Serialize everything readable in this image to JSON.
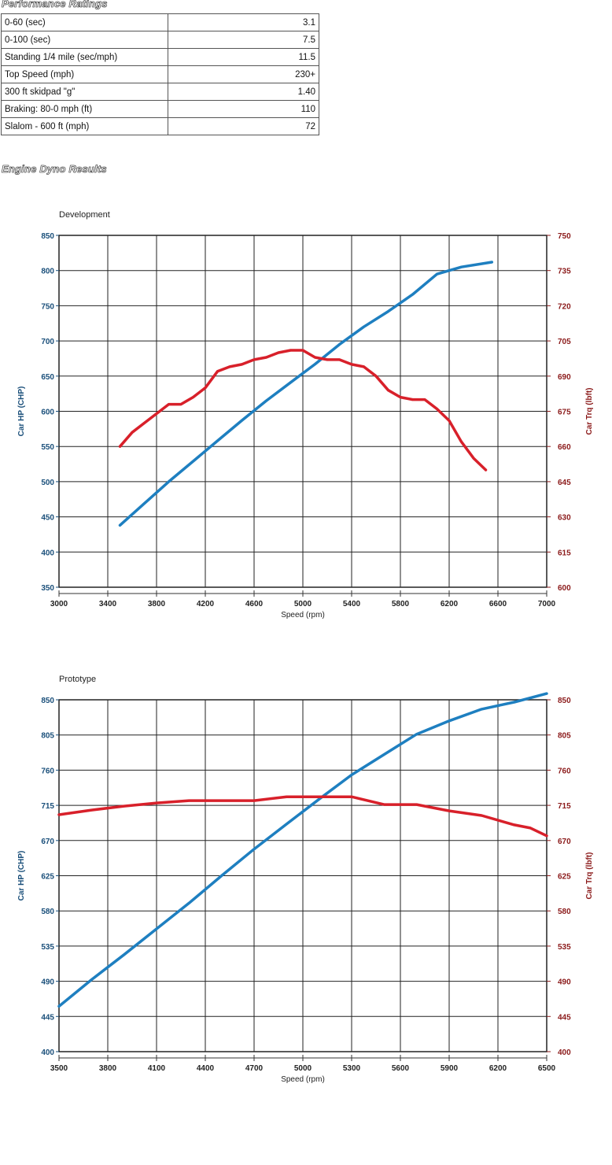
{
  "performance": {
    "title": "Performance Ratings",
    "rows": [
      {
        "label": "0-60 (sec)",
        "value": "3.1"
      },
      {
        "label": "0-100 (sec)",
        "value": "7.5"
      },
      {
        "label": "Standing 1/4 mile (sec/mph)",
        "value": "11.5"
      },
      {
        "label": "Top Speed (mph)",
        "value": "230+"
      },
      {
        "label": "300 ft skidpad \"g\"",
        "value": "1.40"
      },
      {
        "label": "Braking: 80-0 mph (ft)",
        "value": "110"
      },
      {
        "label": "Slalom - 600 ft (mph)",
        "value": "72"
      }
    ]
  },
  "dyno_title": "Engine Dyno Results",
  "colors": {
    "hp": "#1e7fc0",
    "torque": "#d8202a",
    "left_axis": "#1a4f7a",
    "right_axis": "#8b1a1a",
    "grid": "#222222"
  },
  "chart_data": [
    {
      "type": "line",
      "title": "Development",
      "xlabel": "Speed (rpm)",
      "ylabel_left": "Car HP (CHP)",
      "ylabel_right": "Car Trq (lbft)",
      "xlim": [
        3000,
        7000
      ],
      "x_ticks": [
        3000,
        3400,
        3800,
        4200,
        4600,
        5000,
        5400,
        5800,
        6200,
        6600,
        7000
      ],
      "ylim_left": [
        350,
        850
      ],
      "y_ticks_left": [
        350,
        400,
        450,
        500,
        550,
        600,
        650,
        700,
        750,
        800,
        850
      ],
      "ylim_right": [
        600,
        750
      ],
      "y_ticks_right": [
        600,
        615,
        630,
        645,
        660,
        675,
        690,
        705,
        720,
        735,
        750
      ],
      "grid": true,
      "series": [
        {
          "name": "Car HP (CHP)",
          "axis": "left",
          "color": "#1e7fc0",
          "x": [
            3500,
            3700,
            3900,
            4100,
            4300,
            4500,
            4700,
            4900,
            5100,
            5300,
            5500,
            5700,
            5900,
            6100,
            6300,
            6550
          ],
          "y": [
            438,
            469,
            500,
            529,
            558,
            587,
            615,
            641,
            667,
            695,
            720,
            742,
            766,
            795,
            805,
            812
          ]
        },
        {
          "name": "Car Trq (lbft)",
          "axis": "right",
          "color": "#d8202a",
          "x": [
            3500,
            3600,
            3700,
            3800,
            3900,
            4000,
            4100,
            4200,
            4300,
            4400,
            4500,
            4600,
            4700,
            4800,
            4900,
            5000,
            5100,
            5200,
            5300,
            5400,
            5500,
            5600,
            5700,
            5800,
            5900,
            6000,
            6100,
            6200,
            6300,
            6400,
            6500
          ],
          "y": [
            660,
            666,
            670,
            674,
            678,
            678,
            681,
            685,
            692,
            694,
            695,
            697,
            698,
            700,
            701,
            701,
            698,
            697,
            697,
            695,
            694,
            690,
            684,
            681,
            680,
            680,
            676,
            671,
            662,
            655,
            650
          ]
        }
      ]
    },
    {
      "type": "line",
      "title": "Prototype",
      "xlabel": "Speed (rpm)",
      "ylabel_left": "Car HP (CHP)",
      "ylabel_right": "Car Trq (lbft)",
      "xlim": [
        3500,
        6500
      ],
      "x_ticks": [
        3500,
        3800,
        4100,
        4400,
        4700,
        5000,
        5300,
        5600,
        5900,
        6200,
        6500
      ],
      "ylim_left": [
        400,
        850
      ],
      "y_ticks_left": [
        400,
        445,
        490,
        535,
        580,
        625,
        670,
        715,
        760,
        805,
        850
      ],
      "ylim_right": [
        400,
        850
      ],
      "y_ticks_right": [
        400,
        445,
        490,
        535,
        580,
        625,
        670,
        715,
        760,
        805,
        850
      ],
      "grid": true,
      "series": [
        {
          "name": "Car HP (CHP)",
          "axis": "left",
          "color": "#1e7fc0",
          "x": [
            3500,
            3700,
            3900,
            4100,
            4300,
            4500,
            4700,
            4900,
            5100,
            5300,
            5500,
            5700,
            5900,
            6100,
            6300,
            6500
          ],
          "y": [
            458,
            492,
            524,
            557,
            590,
            625,
            659,
            691,
            723,
            754,
            780,
            806,
            823,
            838,
            847,
            858
          ]
        },
        {
          "name": "Car Trq (lbft)",
          "axis": "right",
          "color": "#d8202a",
          "x": [
            3500,
            3700,
            3900,
            4100,
            4300,
            4500,
            4700,
            4900,
            5100,
            5300,
            5500,
            5700,
            5900,
            6100,
            6300,
            6400,
            6500
          ],
          "y": [
            703,
            709,
            714,
            718,
            721,
            721,
            721,
            726,
            726,
            726,
            716,
            716,
            708,
            702,
            690,
            686,
            676
          ]
        }
      ]
    }
  ]
}
